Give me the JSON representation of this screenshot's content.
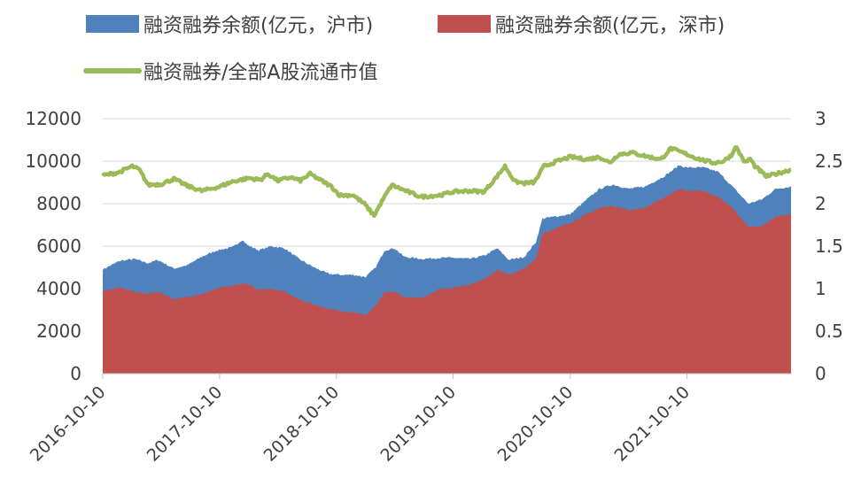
{
  "chart_data": {
    "type": "area",
    "stacked": true,
    "x_start": "2016-10-10",
    "x_end": "2022-08-31",
    "xticks": [
      "2016-10-10",
      "2017-10-10",
      "2018-10-10",
      "2019-10-10",
      "2020-10-10",
      "2021-10-10"
    ],
    "yticks_left": [
      "0",
      "2000",
      "4000",
      "6000",
      "8000",
      "10000",
      "12000"
    ],
    "yticks_right": [
      "0",
      "0.5",
      "1",
      "1.5",
      "2",
      "2.5",
      "3"
    ],
    "ylim_left": [
      0,
      12000
    ],
    "ylim_right": [
      0,
      3
    ],
    "grid": "horizontal",
    "legend_position": "top",
    "series": [
      {
        "name": "融资融券余额(亿元，沪市)",
        "type": "area",
        "axis": "left",
        "color": "#4f81bd",
        "points": [
          [
            "2016-10-10",
            4900
          ],
          [
            "2016-12-01",
            5300
          ],
          [
            "2017-01-15",
            5400
          ],
          [
            "2017-03-01",
            5200
          ],
          [
            "2017-04-01",
            5350
          ],
          [
            "2017-05-20",
            4950
          ],
          [
            "2017-07-01",
            5100
          ],
          [
            "2017-08-15",
            5500
          ],
          [
            "2017-10-01",
            5800
          ],
          [
            "2017-11-20",
            5950
          ],
          [
            "2017-12-20",
            6300
          ],
          [
            "2018-01-05",
            6050
          ],
          [
            "2018-02-10",
            5800
          ],
          [
            "2018-03-20",
            6000
          ],
          [
            "2018-05-01",
            5900
          ],
          [
            "2018-06-15",
            5400
          ],
          [
            "2018-08-01",
            5000
          ],
          [
            "2018-09-15",
            4700
          ],
          [
            "2018-10-20",
            4650
          ],
          [
            "2018-12-01",
            4650
          ],
          [
            "2019-01-10",
            4550
          ],
          [
            "2019-02-10",
            5000
          ],
          [
            "2019-03-10",
            5800
          ],
          [
            "2019-04-10",
            5900
          ],
          [
            "2019-05-10",
            5500
          ],
          [
            "2019-07-01",
            5400
          ],
          [
            "2019-09-01",
            5450
          ],
          [
            "2019-10-10",
            5450
          ],
          [
            "2019-12-01",
            5400
          ],
          [
            "2020-01-15",
            5550
          ],
          [
            "2020-02-25",
            5900
          ],
          [
            "2020-04-01",
            5350
          ],
          [
            "2020-05-20",
            5500
          ],
          [
            "2020-06-25",
            6200
          ],
          [
            "2020-07-15",
            7300
          ],
          [
            "2020-10-10",
            7500
          ],
          [
            "2020-12-01",
            8200
          ],
          [
            "2021-01-10",
            8700
          ],
          [
            "2021-02-20",
            8900
          ],
          [
            "2021-04-10",
            8700
          ],
          [
            "2021-06-01",
            8800
          ],
          [
            "2021-08-01",
            9300
          ],
          [
            "2021-09-15",
            9800
          ],
          [
            "2021-10-10",
            9700
          ],
          [
            "2021-12-01",
            9700
          ],
          [
            "2022-01-15",
            9500
          ],
          [
            "2022-03-01",
            8800
          ],
          [
            "2022-04-20",
            8000
          ],
          [
            "2022-06-01",
            8200
          ],
          [
            "2022-07-15",
            8700
          ],
          [
            "2022-08-31",
            8800
          ]
        ]
      },
      {
        "name": "融资融券余额(亿元，深市)",
        "type": "area",
        "axis": "left",
        "color": "#c0504d",
        "points": [
          [
            "2016-10-10",
            3900
          ],
          [
            "2016-12-01",
            4050
          ],
          [
            "2017-01-15",
            3850
          ],
          [
            "2017-03-01",
            3750
          ],
          [
            "2017-04-01",
            3850
          ],
          [
            "2017-05-20",
            3500
          ],
          [
            "2017-07-01",
            3600
          ],
          [
            "2017-08-15",
            3750
          ],
          [
            "2017-10-01",
            4000
          ],
          [
            "2017-11-20",
            4150
          ],
          [
            "2017-12-20",
            4250
          ],
          [
            "2018-01-05",
            4200
          ],
          [
            "2018-02-10",
            3950
          ],
          [
            "2018-03-20",
            4000
          ],
          [
            "2018-05-01",
            3850
          ],
          [
            "2018-06-15",
            3500
          ],
          [
            "2018-08-01",
            3250
          ],
          [
            "2018-09-15",
            3050
          ],
          [
            "2018-10-20",
            2950
          ],
          [
            "2018-12-01",
            2900
          ],
          [
            "2019-01-10",
            2750
          ],
          [
            "2019-02-10",
            3200
          ],
          [
            "2019-03-10",
            3800
          ],
          [
            "2019-04-10",
            3850
          ],
          [
            "2019-05-10",
            3600
          ],
          [
            "2019-07-01",
            3550
          ],
          [
            "2019-09-01",
            4000
          ],
          [
            "2019-10-10",
            4050
          ],
          [
            "2019-12-01",
            4200
          ],
          [
            "2020-01-15",
            4450
          ],
          [
            "2020-02-25",
            4900
          ],
          [
            "2020-04-01",
            4650
          ],
          [
            "2020-05-20",
            4950
          ],
          [
            "2020-06-25",
            5400
          ],
          [
            "2020-07-15",
            6600
          ],
          [
            "2020-10-10",
            7100
          ],
          [
            "2020-12-01",
            7500
          ],
          [
            "2021-01-10",
            7800
          ],
          [
            "2021-02-20",
            7900
          ],
          [
            "2021-04-10",
            7700
          ],
          [
            "2021-06-01",
            7800
          ],
          [
            "2021-08-01",
            8300
          ],
          [
            "2021-09-15",
            8700
          ],
          [
            "2021-10-10",
            8600
          ],
          [
            "2021-12-01",
            8600
          ],
          [
            "2022-01-15",
            8300
          ],
          [
            "2022-03-01",
            7800
          ],
          [
            "2022-04-20",
            6900
          ],
          [
            "2022-06-01",
            6950
          ],
          [
            "2022-07-15",
            7400
          ],
          [
            "2022-08-31",
            7500
          ]
        ]
      },
      {
        "name": "融资融券/全部A股流通市值",
        "type": "line",
        "axis": "right",
        "color": "#9bbb59",
        "points": [
          [
            "2016-10-10",
            2.33
          ],
          [
            "2016-12-01",
            2.37
          ],
          [
            "2017-01-10",
            2.44
          ],
          [
            "2017-02-01",
            2.4
          ],
          [
            "2017-03-01",
            2.22
          ],
          [
            "2017-04-10",
            2.23
          ],
          [
            "2017-05-20",
            2.29
          ],
          [
            "2017-07-01",
            2.21
          ],
          [
            "2017-08-15",
            2.15
          ],
          [
            "2017-10-10",
            2.2
          ],
          [
            "2017-11-20",
            2.26
          ],
          [
            "2018-01-10",
            2.3
          ],
          [
            "2018-02-15",
            2.28
          ],
          [
            "2018-03-10",
            2.35
          ],
          [
            "2018-04-10",
            2.27
          ],
          [
            "2018-05-20",
            2.31
          ],
          [
            "2018-06-20",
            2.27
          ],
          [
            "2018-07-20",
            2.35
          ],
          [
            "2018-08-20",
            2.28
          ],
          [
            "2018-09-25",
            2.2
          ],
          [
            "2018-10-20",
            2.1
          ],
          [
            "2018-12-01",
            2.1
          ],
          [
            "2019-01-05",
            2.0
          ],
          [
            "2019-02-05",
            1.86
          ],
          [
            "2019-03-05",
            2.05
          ],
          [
            "2019-04-01",
            2.22
          ],
          [
            "2019-05-15",
            2.15
          ],
          [
            "2019-07-01",
            2.08
          ],
          [
            "2019-09-01",
            2.1
          ],
          [
            "2019-10-10",
            2.14
          ],
          [
            "2019-12-01",
            2.15
          ],
          [
            "2020-01-15",
            2.14
          ],
          [
            "2020-02-20",
            2.3
          ],
          [
            "2020-03-20",
            2.44
          ],
          [
            "2020-04-20",
            2.26
          ],
          [
            "2020-05-20",
            2.24
          ],
          [
            "2020-06-20",
            2.25
          ],
          [
            "2020-07-20",
            2.44
          ],
          [
            "2020-09-01",
            2.5
          ],
          [
            "2020-10-10",
            2.55
          ],
          [
            "2020-12-01",
            2.52
          ],
          [
            "2021-01-10",
            2.55
          ],
          [
            "2021-02-10",
            2.48
          ],
          [
            "2021-03-10",
            2.58
          ],
          [
            "2021-04-20",
            2.6
          ],
          [
            "2021-06-01",
            2.56
          ],
          [
            "2021-07-20",
            2.52
          ],
          [
            "2021-08-20",
            2.65
          ],
          [
            "2021-10-10",
            2.58
          ],
          [
            "2021-11-20",
            2.52
          ],
          [
            "2022-01-01",
            2.48
          ],
          [
            "2022-02-01",
            2.5
          ],
          [
            "2022-03-01",
            2.58
          ],
          [
            "2022-03-10",
            2.68
          ],
          [
            "2022-04-10",
            2.48
          ],
          [
            "2022-04-25",
            2.53
          ],
          [
            "2022-05-10",
            2.44
          ],
          [
            "2022-06-15",
            2.32
          ],
          [
            "2022-07-15",
            2.35
          ],
          [
            "2022-08-31",
            2.4
          ]
        ]
      }
    ]
  }
}
